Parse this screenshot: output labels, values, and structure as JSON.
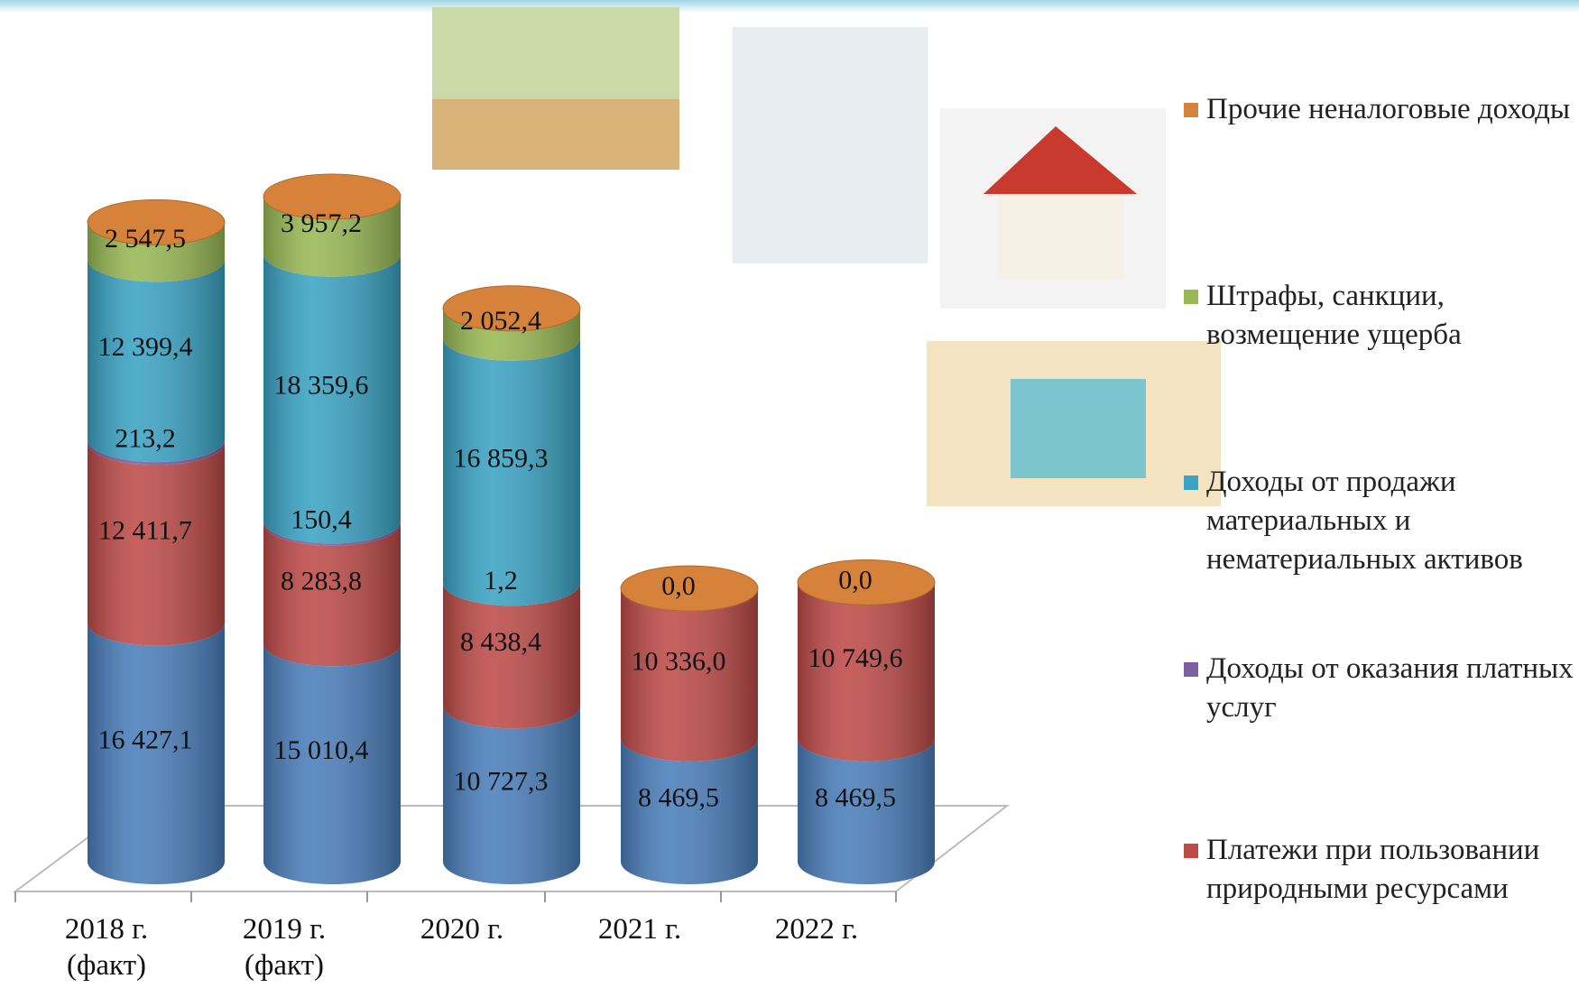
{
  "chart_data": {
    "type": "bar3d",
    "categories": [
      "2018 г. (факт)",
      "2019 г. (факт)",
      "2020 г.",
      "2021 г.",
      "2022 г."
    ],
    "series": [
      {
        "color": "#4a7ebb",
        "values": [
          16427.1,
          15010.4,
          10727.3,
          8469.5,
          8469.5
        ],
        "value_labels": [
          "16 427,1",
          "15 010,4",
          "10 727,3",
          "8 469,5",
          "8 469,5"
        ]
      },
      {
        "name": "Платежи при пользовании природными ресурсами",
        "color": "#be4b48",
        "values": [
          12411.7,
          8283.8,
          8438.4,
          10336.0,
          10749.6
        ],
        "value_labels": [
          "12 411,7",
          "8 283,8",
          "8 438,4",
          "10 336,0",
          "10 749,6"
        ]
      },
      {
        "name": "Доходы от оказания платных услуг",
        "color": "#7d60a0",
        "values": [
          213.2,
          150.4,
          1.2,
          0,
          0
        ],
        "value_labels": [
          "213,2",
          "150,4",
          "1,2",
          null,
          null
        ]
      },
      {
        "name": "Доходы от продажи материальных и нематериальных активов",
        "color": "#3aa3c4",
        "values": [
          12399.4,
          18359.6,
          16859.3,
          0,
          0
        ],
        "value_labels": [
          "12 399,4",
          "18 359,6",
          "16 859,3",
          null,
          null
        ]
      },
      {
        "name": "Штрафы, санкции, возмещение ущерба",
        "color": "#98b954",
        "values": [
          2547.5,
          3957.2,
          2052.4,
          0.0,
          0.0
        ],
        "value_labels": [
          "2 547,5",
          "3 957,2",
          "2 052,4",
          "0,0",
          "0,0"
        ]
      },
      {
        "name": "Прочие неналоговые доходы",
        "color": "#d7823a",
        "values": [
          0,
          0,
          0,
          0,
          0
        ]
      }
    ]
  }
}
